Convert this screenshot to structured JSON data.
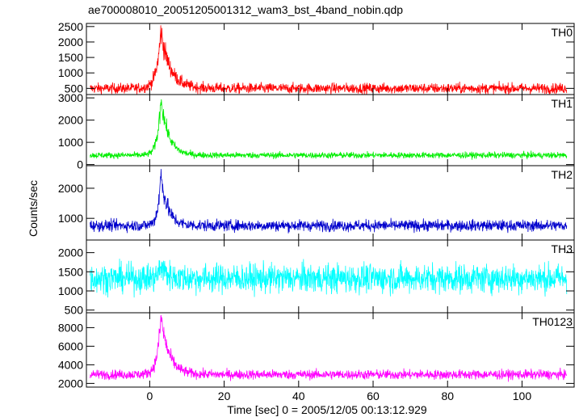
{
  "chart_data": {
    "type": "line",
    "title": "ae700008010_20051205001312_wam3_bst_4band_nobin.qdp",
    "xlabel": "Time [sec] 0 = 2005/12/05 00:13:12.929",
    "ylabel": "Counts/sec",
    "xlim": [
      -17,
      114
    ],
    "x_ticks": [
      0,
      20,
      40,
      60,
      80,
      100
    ],
    "x_tick_labels": [
      "0",
      "20",
      "40",
      "60",
      "80",
      "100"
    ],
    "x_range_data": [
      -16,
      112
    ],
    "panels": [
      {
        "name": "TH0",
        "color": "#ff0000",
        "ylim": [
          300,
          2600
        ],
        "y_ticks": [
          500,
          1000,
          1500,
          2000,
          2500
        ],
        "y_tick_labels": [
          "500",
          "1000",
          "1500",
          "2000",
          "2500"
        ],
        "baseline": 500,
        "noise": 85,
        "peak_extra": 1850,
        "peak_time": 3,
        "peak_tau": 2.5
      },
      {
        "name": "TH1",
        "color": "#00ee00",
        "ylim": [
          -50,
          3150
        ],
        "y_ticks": [
          0,
          1000,
          2000,
          3000
        ],
        "y_tick_labels": [
          "0",
          "1000",
          "2000",
          "3000"
        ],
        "baseline": 420,
        "noise": 70,
        "peak_extra": 2600,
        "peak_time": 3,
        "peak_tau": 2.0
      },
      {
        "name": "TH2",
        "color": "#0000cc",
        "ylim": [
          280,
          2750
        ],
        "y_ticks": [
          1000,
          2000
        ],
        "y_tick_labels": [
          "1000",
          "2000"
        ],
        "baseline": 760,
        "noise": 95,
        "peak_extra": 1700,
        "peak_time": 3,
        "peak_tau": 1.8
      },
      {
        "name": "TH3",
        "color": "#00ffff",
        "ylim": [
          430,
          2330
        ],
        "y_ticks": [
          500,
          1000,
          1500,
          2000
        ],
        "y_tick_labels": [
          "500",
          "1000",
          "1500",
          "2000"
        ],
        "baseline": 1330,
        "noise": 190,
        "peak_extra": 350,
        "peak_time": 3,
        "peak_tau": 1.5
      },
      {
        "name": "TH0123",
        "color": "#ff00ff",
        "ylim": [
          1600,
          9600
        ],
        "y_ticks": [
          2000,
          4000,
          6000,
          8000
        ],
        "y_tick_labels": [
          "2000",
          "4000",
          "6000",
          "8000"
        ],
        "baseline": 2950,
        "noise": 260,
        "peak_extra": 6200,
        "peak_time": 3,
        "peak_tau": 2.2
      }
    ]
  }
}
